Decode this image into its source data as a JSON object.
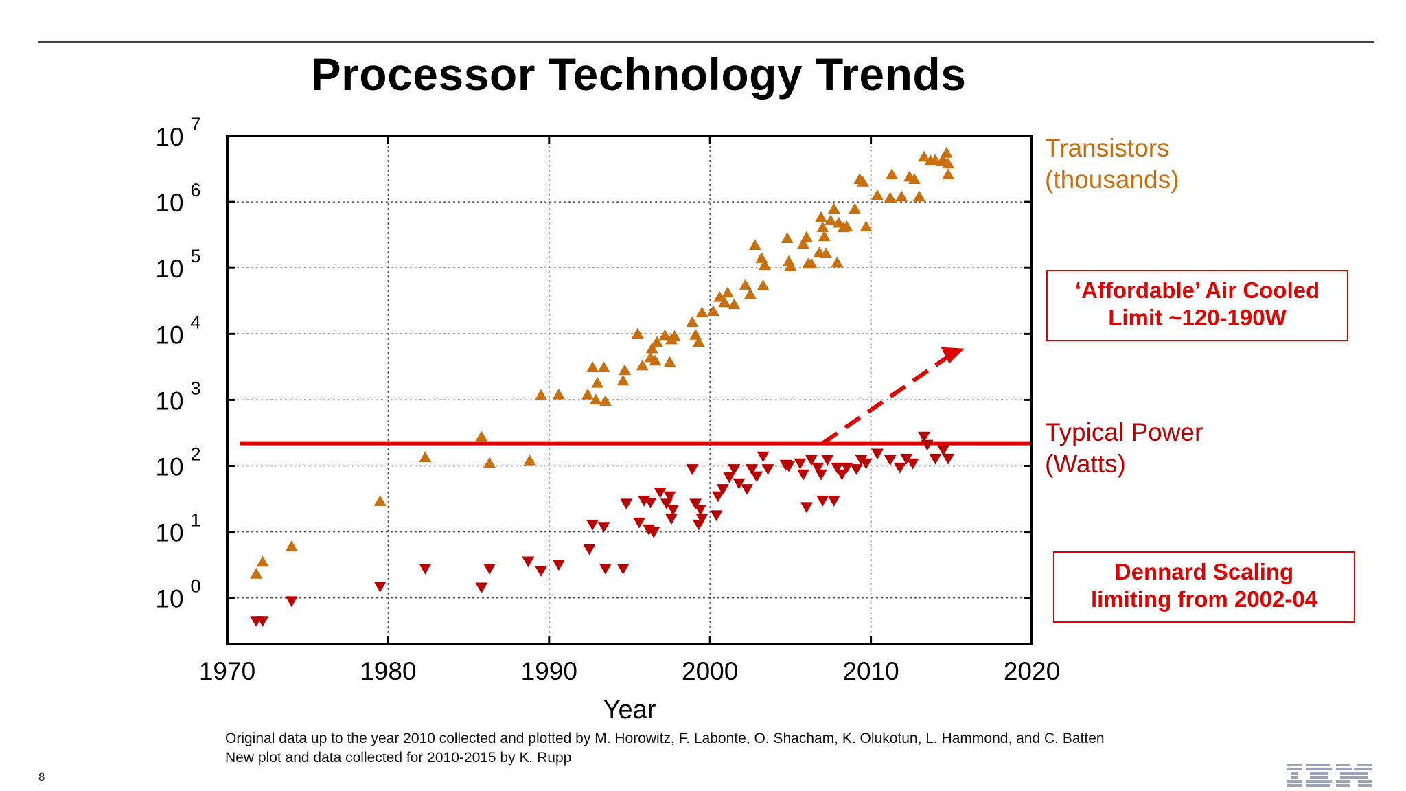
{
  "slide": {
    "title": "Processor Technology Trends",
    "credits": [
      "Original data up to the year 2010 collected and plotted by M. Horowitz, F. Labonte, O. Shacham, K. Olukotun, L. Hammond, and C. Batten",
      "New plot and data collected for 2010-2015 by K. Rupp"
    ],
    "page_number": "8",
    "logo": "IBM"
  },
  "annotations": {
    "air_cooled_limit": [
      "‘Affordable’ Air Cooled",
      "Limit  ~120-190W"
    ],
    "dennard": [
      "Dennard Scaling",
      "limiting from 2002-04"
    ]
  },
  "chart_data": {
    "type": "scatter",
    "xlabel": "Year",
    "ylabel": "",
    "xlim": [
      1970,
      2020
    ],
    "ylog": true,
    "ylim_exp": [
      -0.7,
      7
    ],
    "x_ticks": [
      "1970",
      "1980",
      "1990",
      "2000",
      "2010",
      "2020"
    ],
    "y_ticks": [
      {
        "base": "10",
        "exp": "0"
      },
      {
        "base": "10",
        "exp": "1"
      },
      {
        "base": "10",
        "exp": "2"
      },
      {
        "base": "10",
        "exp": "3"
      },
      {
        "base": "10",
        "exp": "4"
      },
      {
        "base": "10",
        "exp": "5"
      },
      {
        "base": "10",
        "exp": "6"
      },
      {
        "base": "10",
        "exp": "7"
      }
    ],
    "grid": true,
    "colors": {
      "transistors": "#c8700f",
      "power": "#b80000",
      "limit_line": "#e00000"
    },
    "power_limit_line": {
      "y": 220,
      "x_start": 1970.8,
      "x_end": 2019.9
    },
    "limit_arrow": {
      "from": [
        2007,
        220
      ],
      "to": [
        2015.8,
        6000
      ]
    },
    "series": [
      {
        "name": "Transistors\n(thousands)",
        "name_lines": [
          "Transistors",
          "(thousands)"
        ],
        "marker": "triangle-up",
        "points": [
          [
            1971.8,
            2.3
          ],
          [
            1972.2,
            3.5
          ],
          [
            1974.0,
            6
          ],
          [
            1979.5,
            29
          ],
          [
            1982.3,
            134
          ],
          [
            1985.8,
            275
          ],
          [
            1986.3,
            110
          ],
          [
            1988.8,
            120
          ],
          [
            1989.5,
            1180
          ],
          [
            1990.6,
            1200
          ],
          [
            1992.4,
            1200
          ],
          [
            1992.7,
            3100
          ],
          [
            1992.9,
            1000
          ],
          [
            1993.0,
            1800
          ],
          [
            1993.4,
            3100
          ],
          [
            1993.5,
            950
          ],
          [
            1994.6,
            1950
          ],
          [
            1994.7,
            2800
          ],
          [
            1995.5,
            10000
          ],
          [
            1995.8,
            3300
          ],
          [
            1996.3,
            4400
          ],
          [
            1996.4,
            6000
          ],
          [
            1996.6,
            3900
          ],
          [
            1996.7,
            7500
          ],
          [
            1997.2,
            9500
          ],
          [
            1997.5,
            3700
          ],
          [
            1997.6,
            8200
          ],
          [
            1997.8,
            9200
          ],
          [
            1998.9,
            15000
          ],
          [
            1999.1,
            9600
          ],
          [
            1999.3,
            7500
          ],
          [
            1999.5,
            21000
          ],
          [
            2000.2,
            22000
          ],
          [
            2000.6,
            36000
          ],
          [
            2000.9,
            30000
          ],
          [
            2001.1,
            42000
          ],
          [
            2001.5,
            28000
          ],
          [
            2002.2,
            55000
          ],
          [
            2002.5,
            40000
          ],
          [
            2002.8,
            220000
          ],
          [
            2003.2,
            140000
          ],
          [
            2003.4,
            110000
          ],
          [
            2003.3,
            54000
          ],
          [
            2004.8,
            280000
          ],
          [
            2004.9,
            125000
          ],
          [
            2005.0,
            105000
          ],
          [
            2005.8,
            230000
          ],
          [
            2006.0,
            290000
          ],
          [
            2006.1,
            115000
          ],
          [
            2006.3,
            115000
          ],
          [
            2006.8,
            170000
          ],
          [
            2006.9,
            580000
          ],
          [
            2007.0,
            410000
          ],
          [
            2007.1,
            300000
          ],
          [
            2007.2,
            165000
          ],
          [
            2007.5,
            520000
          ],
          [
            2007.7,
            780000
          ],
          [
            2007.9,
            120000
          ],
          [
            2008.0,
            480000
          ],
          [
            2008.3,
            410000
          ],
          [
            2008.5,
            420000
          ],
          [
            2009.0,
            780000
          ],
          [
            2009.3,
            2200000
          ],
          [
            2009.5,
            2000000
          ],
          [
            2009.7,
            420000
          ],
          [
            2010.4,
            1250000
          ],
          [
            2011.2,
            1150000
          ],
          [
            2011.3,
            2600000
          ],
          [
            2011.9,
            1200000
          ],
          [
            2012.4,
            2400000
          ],
          [
            2012.7,
            2200000
          ],
          [
            2013.0,
            1200000
          ],
          [
            2013.3,
            4800000
          ],
          [
            2013.7,
            4200000
          ],
          [
            2014.0,
            4300000
          ],
          [
            2014.4,
            4100000
          ],
          [
            2014.5,
            4300000
          ],
          [
            2014.7,
            5500000
          ],
          [
            2014.8,
            3800000
          ],
          [
            2014.8,
            2600000
          ]
        ]
      },
      {
        "name": "Typical Power\n(Watts)",
        "name_lines": [
          "Typical Power",
          "(Watts)"
        ],
        "marker": "triangle-down",
        "points": [
          [
            1971.8,
            0.45
          ],
          [
            1972.2,
            0.45
          ],
          [
            1974.0,
            0.9
          ],
          [
            1979.5,
            1.5
          ],
          [
            1982.3,
            2.8
          ],
          [
            1985.8,
            1.45
          ],
          [
            1986.3,
            2.8
          ],
          [
            1988.7,
            3.6
          ],
          [
            1989.5,
            2.6
          ],
          [
            1990.6,
            3.2
          ],
          [
            1992.5,
            5.5
          ],
          [
            1992.7,
            13
          ],
          [
            1993.4,
            12
          ],
          [
            1993.5,
            2.8
          ],
          [
            1994.6,
            2.8
          ],
          [
            1994.8,
            27
          ],
          [
            1995.6,
            14
          ],
          [
            1995.9,
            30
          ],
          [
            1996.2,
            11
          ],
          [
            1996.3,
            28
          ],
          [
            1996.5,
            10
          ],
          [
            1996.9,
            40
          ],
          [
            1997.3,
            27
          ],
          [
            1997.5,
            35
          ],
          [
            1997.6,
            16
          ],
          [
            1997.7,
            22
          ],
          [
            1998.9,
            90
          ],
          [
            1999.1,
            27
          ],
          [
            1999.3,
            13
          ],
          [
            1999.4,
            22
          ],
          [
            1999.5,
            16
          ],
          [
            2000.4,
            18
          ],
          [
            2000.5,
            35
          ],
          [
            2000.8,
            45
          ],
          [
            2001.2,
            68
          ],
          [
            2001.5,
            90
          ],
          [
            2001.8,
            55
          ],
          [
            2002.3,
            45
          ],
          [
            2002.6,
            90
          ],
          [
            2002.9,
            70
          ],
          [
            2003.3,
            140
          ],
          [
            2003.6,
            90
          ],
          [
            2004.7,
            105
          ],
          [
            2004.9,
            100
          ],
          [
            2005.6,
            110
          ],
          [
            2005.8,
            75
          ],
          [
            2006.0,
            24
          ],
          [
            2006.3,
            125
          ],
          [
            2006.7,
            95
          ],
          [
            2006.9,
            75
          ],
          [
            2007.0,
            30
          ],
          [
            2007.3,
            125
          ],
          [
            2007.7,
            30
          ],
          [
            2007.9,
            95
          ],
          [
            2008.2,
            75
          ],
          [
            2008.5,
            95
          ],
          [
            2009.1,
            90
          ],
          [
            2009.4,
            125
          ],
          [
            2009.7,
            110
          ],
          [
            2010.4,
            155
          ],
          [
            2011.2,
            125
          ],
          [
            2011.8,
            95
          ],
          [
            2012.2,
            130
          ],
          [
            2012.6,
            110
          ],
          [
            2013.3,
            280
          ],
          [
            2013.5,
            210
          ],
          [
            2014.0,
            130
          ],
          [
            2014.5,
            175
          ],
          [
            2014.8,
            130
          ]
        ]
      }
    ]
  }
}
